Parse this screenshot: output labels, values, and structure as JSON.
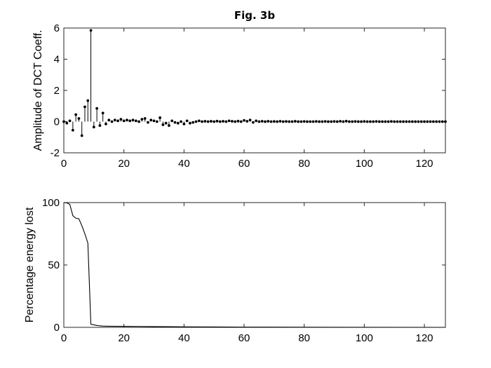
{
  "title": "Fig. 3b",
  "chart_data": [
    {
      "type": "stem",
      "ylabel": "Amplitude of DCT Coeff.",
      "xlabel": "",
      "xlim": [
        0,
        127
      ],
      "ylim": [
        -2,
        6
      ],
      "xticks": [
        "0",
        "20",
        "40",
        "60",
        "80",
        "100",
        "120"
      ],
      "xtick_values": [
        0,
        20,
        40,
        60,
        80,
        100,
        120
      ],
      "yticks": [
        "-2",
        "0",
        "2",
        "4",
        "6"
      ],
      "ytick_values": [
        -2,
        0,
        2,
        4,
        6
      ],
      "grid": false,
      "marker_color": "#000000",
      "x": [
        0,
        1,
        2,
        3,
        4,
        5,
        6,
        7,
        8,
        9,
        10,
        11,
        12,
        13,
        14,
        15,
        16,
        17,
        18,
        19,
        20,
        21,
        22,
        23,
        24,
        25,
        26,
        27,
        28,
        29,
        30,
        31,
        32,
        33,
        34,
        35,
        36,
        37,
        38,
        39,
        40,
        41,
        42,
        43,
        44,
        45,
        46,
        47,
        48,
        49,
        50,
        51,
        52,
        53,
        54,
        55,
        56,
        57,
        58,
        59,
        60,
        61,
        62,
        63,
        64,
        65,
        66,
        67,
        68,
        69,
        70,
        71,
        72,
        73,
        74,
        75,
        76,
        77,
        78,
        79,
        80,
        81,
        82,
        83,
        84,
        85,
        86,
        87,
        88,
        89,
        90,
        91,
        92,
        93,
        94,
        95,
        96,
        97,
        98,
        99,
        100,
        101,
        102,
        103,
        104,
        105,
        106,
        107,
        108,
        109,
        110,
        111,
        112,
        113,
        114,
        115,
        116,
        117,
        118,
        119,
        120,
        121,
        122,
        123,
        124,
        125,
        126,
        127
      ],
      "values": [
        0.0,
        -0.1,
        0.05,
        -0.55,
        0.45,
        0.2,
        -0.9,
        0.95,
        1.35,
        5.85,
        -0.35,
        0.85,
        -0.25,
        0.55,
        -0.15,
        0.1,
        0.0,
        0.1,
        0.05,
        0.15,
        0.05,
        0.1,
        0.05,
        0.1,
        0.05,
        0.0,
        0.15,
        0.2,
        -0.05,
        0.1,
        0.05,
        0.0,
        0.25,
        -0.2,
        -0.1,
        -0.25,
        0.05,
        -0.05,
        -0.1,
        0.0,
        -0.15,
        0.05,
        -0.1,
        -0.05,
        0.0,
        0.05,
        0.0,
        0.02,
        0.0,
        0.02,
        0.0,
        0.03,
        0.0,
        0.02,
        0.0,
        0.05,
        0.02,
        0.0,
        0.03,
        0.0,
        0.08,
        0.02,
        0.1,
        -0.05,
        0.05,
        0.0,
        0.02,
        0.0,
        0.02,
        0.0,
        0.01,
        0.0,
        0.02,
        0.0,
        0.01,
        0.0,
        0.0,
        0.02,
        0.0,
        0.0,
        0.01,
        0.0,
        0.0,
        0.0,
        0.01,
        0.0,
        0.0,
        0.01,
        0.0,
        0.0,
        0.01,
        0.0,
        0.02,
        0.0,
        0.03,
        0.0,
        0.0,
        0.01,
        0.0,
        0.0,
        0.01,
        0.0,
        0.0,
        0.0,
        0.01,
        0.0,
        0.0,
        0.0,
        0.0,
        0.01,
        0.0,
        0.0,
        0.0,
        0.0,
        0.0,
        0.0,
        0.0,
        0.0,
        0.0,
        0.0,
        0.0,
        0.0,
        0.0,
        0.0,
        0.0,
        0.0,
        0.0,
        0.0
      ]
    },
    {
      "type": "line",
      "ylabel": "Percentage energy lost",
      "xlabel": "",
      "xlim": [
        0,
        127
      ],
      "ylim": [
        0,
        100
      ],
      "xticks": [
        "0",
        "20",
        "40",
        "60",
        "80",
        "100",
        "120"
      ],
      "xtick_values": [
        0,
        20,
        40,
        60,
        80,
        100,
        120
      ],
      "yticks": [
        "0",
        "50",
        "100"
      ],
      "ytick_values": [
        0,
        50,
        100
      ],
      "grid": false,
      "line_color": "#000000",
      "x": [
        0,
        1,
        2,
        3,
        4,
        5,
        6,
        7,
        8,
        9,
        10,
        11,
        12,
        13,
        15,
        20,
        25,
        30,
        35,
        40,
        50,
        60,
        80,
        100,
        127
      ],
      "values": [
        100,
        99.8,
        98.5,
        89.5,
        87.5,
        87.0,
        81.5,
        75.0,
        67.5,
        2.5,
        2.0,
        1.5,
        1.2,
        1.0,
        0.9,
        0.8,
        0.7,
        0.6,
        0.5,
        0.4,
        0.3,
        0.2,
        0.1,
        0.05,
        0.0
      ]
    }
  ]
}
